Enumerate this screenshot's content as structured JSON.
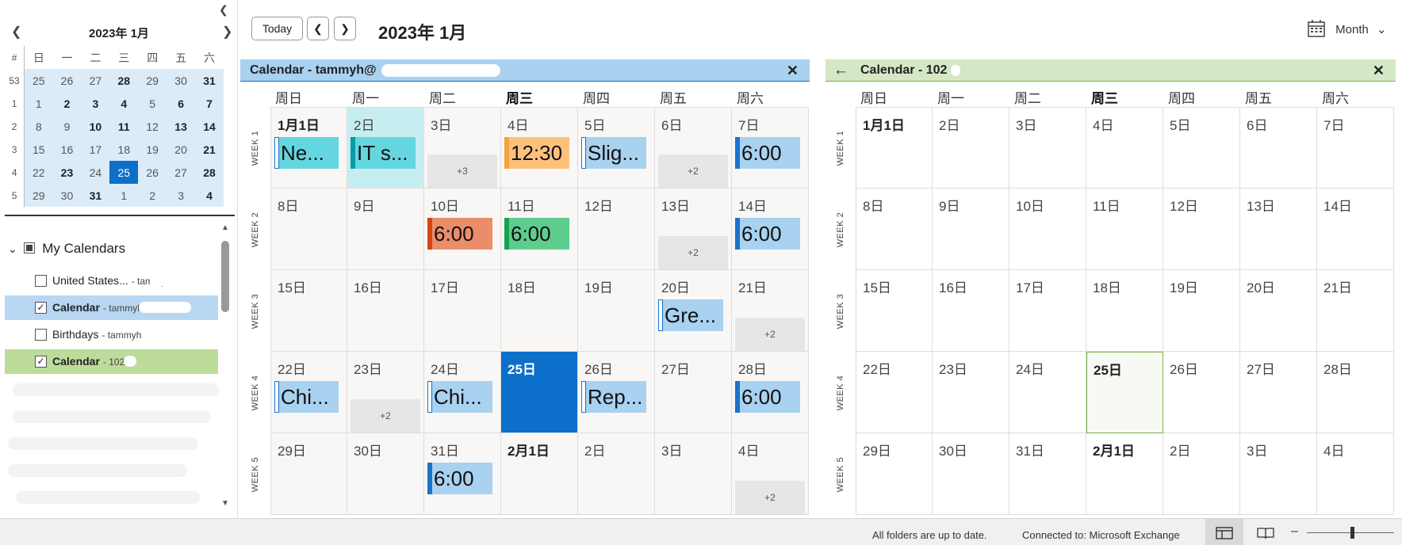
{
  "mini_calendar": {
    "title": "2023年 1月",
    "weekday_header": [
      "#",
      "日",
      "一",
      "二",
      "三",
      "四",
      "五",
      "六"
    ],
    "weeks": [
      {
        "wk": "53",
        "days": [
          {
            "d": "25"
          },
          {
            "d": "26"
          },
          {
            "d": "27"
          },
          {
            "d": "28",
            "b": 1
          },
          {
            "d": "29"
          },
          {
            "d": "30"
          },
          {
            "d": "31",
            "b": 1
          }
        ]
      },
      {
        "wk": "1",
        "days": [
          {
            "d": "1"
          },
          {
            "d": "2",
            "b": 1
          },
          {
            "d": "3",
            "b": 1
          },
          {
            "d": "4",
            "b": 1
          },
          {
            "d": "5"
          },
          {
            "d": "6",
            "b": 1
          },
          {
            "d": "7",
            "b": 1
          }
        ]
      },
      {
        "wk": "2",
        "days": [
          {
            "d": "8"
          },
          {
            "d": "9"
          },
          {
            "d": "10",
            "b": 1
          },
          {
            "d": "11",
            "b": 1
          },
          {
            "d": "12"
          },
          {
            "d": "13",
            "b": 1
          },
          {
            "d": "14",
            "b": 1
          }
        ]
      },
      {
        "wk": "3",
        "days": [
          {
            "d": "15"
          },
          {
            "d": "16"
          },
          {
            "d": "17"
          },
          {
            "d": "18"
          },
          {
            "d": "19"
          },
          {
            "d": "20"
          },
          {
            "d": "21",
            "b": 1
          }
        ]
      },
      {
        "wk": "4",
        "days": [
          {
            "d": "22"
          },
          {
            "d": "23",
            "b": 1
          },
          {
            "d": "24"
          },
          {
            "d": "25",
            "sel": 1
          },
          {
            "d": "26"
          },
          {
            "d": "27"
          },
          {
            "d": "28",
            "b": 1
          }
        ]
      },
      {
        "wk": "5",
        "days": [
          {
            "d": "29"
          },
          {
            "d": "30"
          },
          {
            "d": "31",
            "b": 1
          },
          {
            "d": "1"
          },
          {
            "d": "2"
          },
          {
            "d": "3"
          },
          {
            "d": "4",
            "b": 1
          }
        ]
      }
    ]
  },
  "my_calendars": {
    "label": "My Calendars",
    "items": [
      {
        "name": "United States...",
        "sub": "- tammyh",
        "checked": false,
        "bold": false,
        "bg": "#ffffff"
      },
      {
        "name": "Calendar",
        "sub": "- tammyh@",
        "checked": true,
        "bold": true,
        "bg": "#b7d7f2"
      },
      {
        "name": "Birthdays",
        "sub": "- tammyh",
        "checked": false,
        "bold": false,
        "bg": "#ffffff"
      },
      {
        "name": "Calendar",
        "sub": "- 102",
        "checked": true,
        "bold": true,
        "bg": "#bddb9a"
      }
    ]
  },
  "toolbar": {
    "today_label": "Today",
    "prev_icon": "chevron-left-icon",
    "next_icon": "chevron-right-icon",
    "title": "2023年 1月",
    "view_label": "Month",
    "view_icon": "calendar-grid-icon"
  },
  "weekdays": [
    "周日",
    "周一",
    "周二",
    "周三",
    "周四",
    "周五",
    "周六"
  ],
  "week_labels": [
    "WEEK 1",
    "WEEK 2",
    "WEEK 3",
    "WEEK 4",
    "WEEK 5"
  ],
  "dates": [
    [
      "1月1日",
      "2日",
      "3日",
      "4日",
      "5日",
      "6日",
      "7日"
    ],
    [
      "8日",
      "9日",
      "10日",
      "11日",
      "12日",
      "13日",
      "14日"
    ],
    [
      "15日",
      "16日",
      "17日",
      "18日",
      "19日",
      "20日",
      "21日"
    ],
    [
      "22日",
      "23日",
      "24日",
      "25日",
      "26日",
      "27日",
      "28日"
    ],
    [
      "29日",
      "30日",
      "31日",
      "2月1日",
      "2日",
      "3日",
      "4日"
    ]
  ],
  "pane1": {
    "title": "Calendar - tammyh@",
    "header_color": "#a9d1f0",
    "today_index": [
      3,
      3
    ],
    "events": [
      {
        "w": 0,
        "d": 0,
        "text": "Ne...",
        "bg": "#64d6e0",
        "bar": "#ffffff",
        "hollow": true
      },
      {
        "w": 0,
        "d": 1,
        "text": "IT s...",
        "bg": "#64d6e0",
        "bar": "#0a9bab"
      },
      {
        "w": 0,
        "d": 3,
        "text": "12:30",
        "bg": "#fdc17d",
        "bar": "#f3a33c"
      },
      {
        "w": 0,
        "d": 4,
        "text": "Slig...",
        "bg": "#a9d1f0",
        "bar": "#ffffff",
        "hollow": true
      },
      {
        "w": 0,
        "d": 6,
        "text": "6:00",
        "bg": "#a9d1f0",
        "bar": "#1a73c8"
      },
      {
        "w": 1,
        "d": 2,
        "text": "6:00",
        "bg": "#ea8d6b",
        "bar": "#d64511"
      },
      {
        "w": 1,
        "d": 3,
        "text": "6:00",
        "bg": "#5dcd8e",
        "bar": "#16a350"
      },
      {
        "w": 1,
        "d": 6,
        "text": "6:00",
        "bg": "#a9d1f0",
        "bar": "#1a73c8"
      },
      {
        "w": 2,
        "d": 5,
        "text": "Gre...",
        "bg": "#a9d1f0",
        "bar": "#ffffff",
        "hollow": true
      },
      {
        "w": 3,
        "d": 0,
        "text": "Chi...",
        "bg": "#a9d1f0",
        "bar": "#ffffff",
        "hollow": true
      },
      {
        "w": 3,
        "d": 2,
        "text": "Chi...",
        "bg": "#a9d1f0",
        "bar": "#ffffff",
        "hollow": true
      },
      {
        "w": 3,
        "d": 4,
        "text": "Rep...",
        "bg": "#a9d1f0",
        "bar": "#ffffff",
        "hollow": true
      },
      {
        "w": 3,
        "d": 6,
        "text": "6:00",
        "bg": "#a9d1f0",
        "bar": "#1a73c8"
      },
      {
        "w": 4,
        "d": 2,
        "text": "6:00",
        "bg": "#a9d1f0",
        "bar": "#1a73c8"
      }
    ],
    "more": [
      {
        "w": 0,
        "d": 2,
        "text": "+3"
      },
      {
        "w": 0,
        "d": 5,
        "text": "+2"
      },
      {
        "w": 1,
        "d": 5,
        "text": "+2"
      },
      {
        "w": 2,
        "d": 6,
        "text": "+2"
      },
      {
        "w": 3,
        "d": 1,
        "text": "+2"
      },
      {
        "w": 4,
        "d": 6,
        "text": "+2"
      }
    ]
  },
  "pane2": {
    "title": "Calendar - 102",
    "back_icon": "arrow-left-icon",
    "header_color": "#d5e8c5",
    "today_index": [
      3,
      3
    ]
  },
  "status": {
    "sync_text": "All folders are up to date.",
    "connection_text": "Connected to: Microsoft Exchange"
  }
}
